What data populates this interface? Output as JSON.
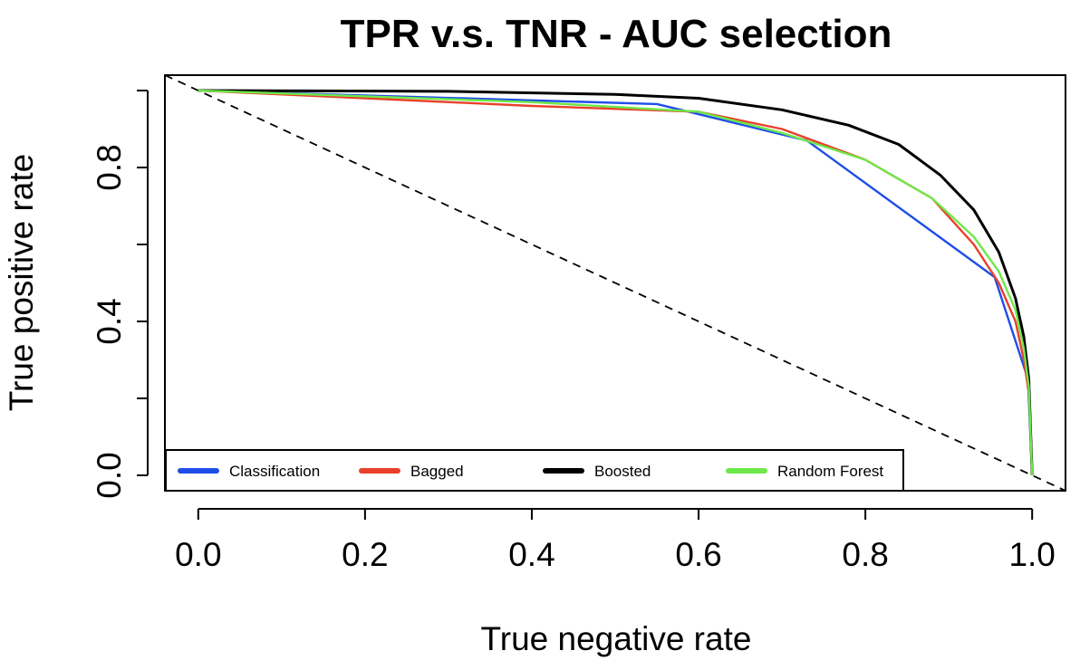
{
  "chart_data": {
    "type": "line",
    "title": "TPR v.s. TNR - AUC selection",
    "xlabel": "True negative rate",
    "ylabel": "True positive rate",
    "xlim": [
      -0.04,
      1.04
    ],
    "ylim": [
      -0.04,
      1.04
    ],
    "x_ticks": [
      0.0,
      0.2,
      0.4,
      0.6,
      0.8,
      1.0
    ],
    "x_tick_labels": [
      "0.0",
      "0.2",
      "0.4",
      "0.6",
      "0.8",
      "1.0"
    ],
    "y_ticks": [
      0.0,
      0.2,
      0.4,
      0.6,
      0.8,
      1.0
    ],
    "y_tick_labels": [
      "0.0",
      "",
      "0.4",
      "",
      "0.8",
      ""
    ],
    "grid": false,
    "legend_position": "bottom-left",
    "reference_line": {
      "style": "dashed",
      "color": "#000000",
      "x": [
        0.0,
        1.0
      ],
      "y": [
        1.0,
        0.0
      ]
    },
    "series": [
      {
        "name": "Classification",
        "color": "#1f4de8",
        "x": [
          0.0,
          0.55,
          0.73,
          0.955,
          0.995,
          1.0
        ],
        "y": [
          1.0,
          0.965,
          0.87,
          0.515,
          0.25,
          0.0
        ]
      },
      {
        "name": "Bagged",
        "color": "#e8402a",
        "x": [
          0.0,
          0.2,
          0.4,
          0.6,
          0.7,
          0.8,
          0.88,
          0.93,
          0.96,
          0.98,
          0.99,
          0.997,
          1.0
        ],
        "y": [
          1.0,
          0.98,
          0.96,
          0.945,
          0.9,
          0.82,
          0.72,
          0.6,
          0.5,
          0.4,
          0.3,
          0.2,
          0.0
        ]
      },
      {
        "name": "Boosted",
        "color": "#000000",
        "x": [
          0.0,
          0.3,
          0.5,
          0.6,
          0.7,
          0.78,
          0.84,
          0.89,
          0.93,
          0.96,
          0.98,
          0.99,
          0.996,
          1.0
        ],
        "y": [
          1.0,
          0.998,
          0.99,
          0.98,
          0.95,
          0.91,
          0.86,
          0.78,
          0.69,
          0.58,
          0.46,
          0.36,
          0.25,
          0.0
        ]
      },
      {
        "name": "Random Forest",
        "color": "#6ee84a",
        "x": [
          0.0,
          0.2,
          0.4,
          0.6,
          0.7,
          0.8,
          0.88,
          0.93,
          0.96,
          0.98,
          0.99,
          0.996,
          1.0
        ],
        "y": [
          1.0,
          0.985,
          0.97,
          0.945,
          0.89,
          0.82,
          0.72,
          0.62,
          0.53,
          0.43,
          0.33,
          0.23,
          0.0
        ]
      }
    ]
  }
}
